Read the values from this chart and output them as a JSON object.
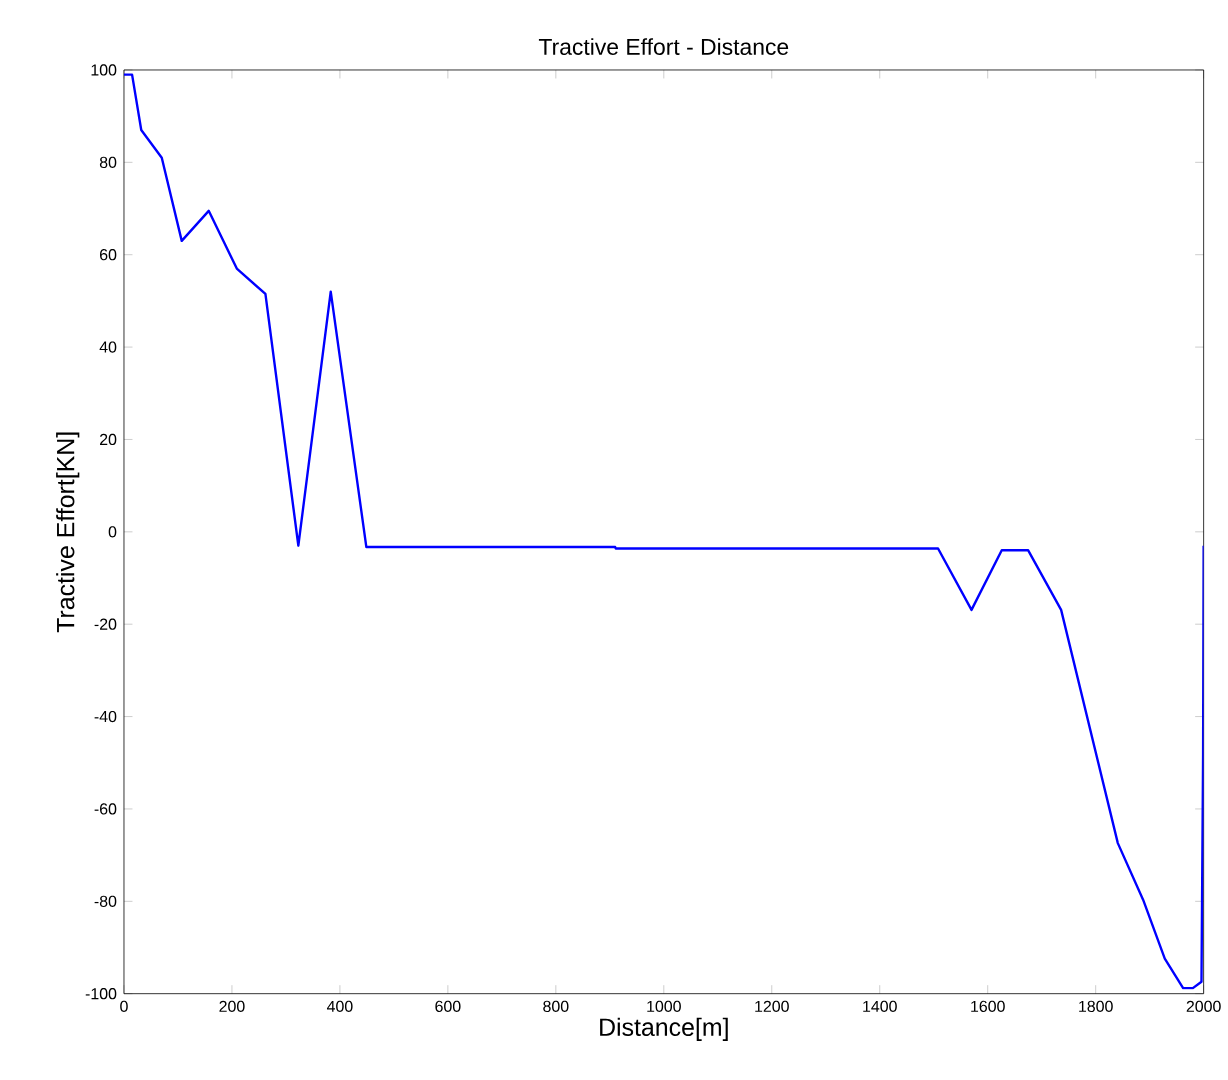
{
  "chart_data": {
    "type": "line",
    "title": "Tractive Effort - Distance",
    "xlabel": "Distance[m]",
    "ylabel": "Tractive Effort[KN]",
    "x": [
      0,
      15,
      32,
      70,
      107,
      157,
      209,
      262,
      323,
      383,
      449,
      910,
      911,
      1508,
      1570,
      1626,
      1675,
      1736,
      1841,
      1888,
      1928,
      1962,
      1980,
      1996,
      1999,
      2000
    ],
    "series": [
      {
        "color": "#0000ff",
        "values": [
          99,
          99,
          87,
          81,
          63,
          69.5,
          57,
          51.5,
          -3,
          52,
          -3.3,
          -3.3,
          -3.6,
          -3.6,
          -16.9,
          -4,
          -4,
          -16.9,
          -67.4,
          -79.7,
          -92.4,
          -98.8,
          -98.8,
          -97.4,
          -48,
          -3
        ]
      }
    ],
    "xlim": [
      0,
      2000
    ],
    "ylim": [
      -100,
      100
    ],
    "xticks": [
      0,
      200,
      400,
      600,
      800,
      1000,
      1200,
      1400,
      1600,
      1800,
      2000
    ],
    "yticks": [
      -100,
      -80,
      -60,
      -40,
      -20,
      0,
      20,
      40,
      60,
      80,
      100
    ],
    "marker": "none",
    "line_style": "solid"
  }
}
